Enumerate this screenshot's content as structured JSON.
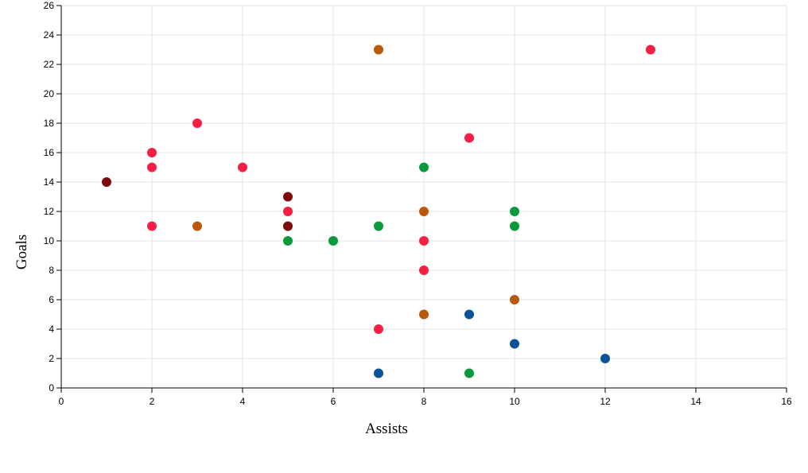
{
  "chart_data": {
    "type": "scatter",
    "xlabel": "Assists",
    "ylabel": "Goals",
    "xlim": [
      0,
      16
    ],
    "ylim": [
      0,
      26
    ],
    "x_ticks": [
      0,
      2,
      4,
      6,
      8,
      10,
      12,
      14,
      16
    ],
    "y_ticks": [
      0,
      2,
      4,
      6,
      8,
      10,
      12,
      14,
      16,
      18,
      20,
      22,
      24,
      26
    ],
    "grid": true,
    "legend": "none",
    "points": [
      {
        "x": 1,
        "y": 14,
        "color": "#7b0a0a"
      },
      {
        "x": 5,
        "y": 13,
        "color": "#7b0a0a"
      },
      {
        "x": 5,
        "y": 11,
        "color": "#7b0a0a"
      },
      {
        "x": 2,
        "y": 16,
        "color": "#f51f43"
      },
      {
        "x": 2,
        "y": 15,
        "color": "#f51f43"
      },
      {
        "x": 2,
        "y": 11,
        "color": "#f51f43"
      },
      {
        "x": 3,
        "y": 18,
        "color": "#f51f43"
      },
      {
        "x": 4,
        "y": 15,
        "color": "#f51f43"
      },
      {
        "x": 5,
        "y": 12,
        "color": "#f51f43"
      },
      {
        "x": 7,
        "y": 4,
        "color": "#f51f43"
      },
      {
        "x": 8,
        "y": 10,
        "color": "#f51f43"
      },
      {
        "x": 8,
        "y": 8,
        "color": "#f51f43"
      },
      {
        "x": 9,
        "y": 17,
        "color": "#f51f43"
      },
      {
        "x": 13,
        "y": 23,
        "color": "#f51f43"
      },
      {
        "x": 3,
        "y": 11,
        "color": "#b8590c"
      },
      {
        "x": 7,
        "y": 23,
        "color": "#b8590c"
      },
      {
        "x": 8,
        "y": 12,
        "color": "#b8590c"
      },
      {
        "x": 8,
        "y": 5,
        "color": "#b8590c"
      },
      {
        "x": 10,
        "y": 6,
        "color": "#b8590c"
      },
      {
        "x": 5,
        "y": 10,
        "color": "#0a9a3c"
      },
      {
        "x": 6,
        "y": 10,
        "color": "#0a9a3c"
      },
      {
        "x": 7,
        "y": 11,
        "color": "#0a9a3c"
      },
      {
        "x": 8,
        "y": 15,
        "color": "#0a9a3c"
      },
      {
        "x": 9,
        "y": 1,
        "color": "#0a9a3c"
      },
      {
        "x": 10,
        "y": 12,
        "color": "#0a9a3c"
      },
      {
        "x": 10,
        "y": 11,
        "color": "#0a9a3c"
      },
      {
        "x": 7,
        "y": 1,
        "color": "#0c5296"
      },
      {
        "x": 9,
        "y": 5,
        "color": "#0c5296"
      },
      {
        "x": 10,
        "y": 3,
        "color": "#0c5296"
      },
      {
        "x": 12,
        "y": 2,
        "color": "#0c5296"
      }
    ]
  }
}
